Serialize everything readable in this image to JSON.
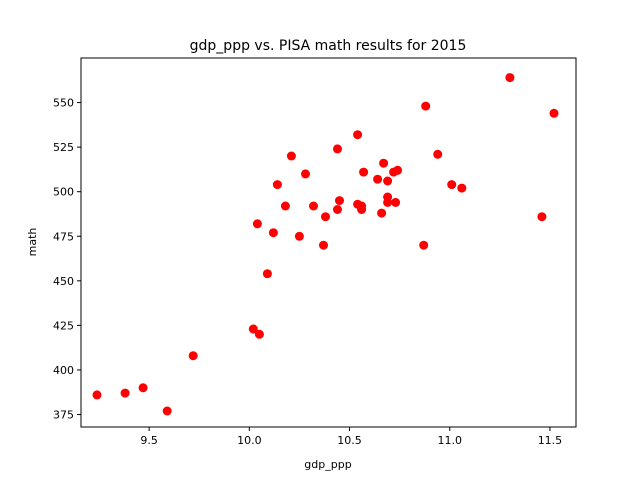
{
  "chart_data": {
    "type": "scatter",
    "title": "gdp_ppp vs. PISA math results for 2015",
    "xlabel": "gdp_ppp",
    "ylabel": "math",
    "xlim": [
      9.16,
      11.63
    ],
    "ylim": [
      368,
      575
    ],
    "x_ticks": [
      9.5,
      10.0,
      10.5,
      11.0,
      11.5
    ],
    "x_tick_labels": [
      "9.5",
      "10.0",
      "10.5",
      "11.0",
      "11.5"
    ],
    "y_ticks": [
      375,
      400,
      425,
      450,
      475,
      500,
      525,
      550
    ],
    "y_tick_labels": [
      "375",
      "400",
      "425",
      "450",
      "475",
      "500",
      "525",
      "550"
    ],
    "grid": false,
    "marker_color": "#ff0000",
    "points": [
      {
        "x": 9.24,
        "y": 386
      },
      {
        "x": 9.38,
        "y": 387
      },
      {
        "x": 9.47,
        "y": 390
      },
      {
        "x": 9.59,
        "y": 377
      },
      {
        "x": 9.72,
        "y": 408
      },
      {
        "x": 10.02,
        "y": 423
      },
      {
        "x": 10.05,
        "y": 420
      },
      {
        "x": 10.04,
        "y": 482
      },
      {
        "x": 10.09,
        "y": 454
      },
      {
        "x": 10.12,
        "y": 477
      },
      {
        "x": 10.14,
        "y": 504
      },
      {
        "x": 10.18,
        "y": 492
      },
      {
        "x": 10.21,
        "y": 520
      },
      {
        "x": 10.25,
        "y": 475
      },
      {
        "x": 10.28,
        "y": 510
      },
      {
        "x": 10.32,
        "y": 492
      },
      {
        "x": 10.37,
        "y": 470
      },
      {
        "x": 10.38,
        "y": 486
      },
      {
        "x": 10.44,
        "y": 524
      },
      {
        "x": 10.44,
        "y": 490
      },
      {
        "x": 10.45,
        "y": 495
      },
      {
        "x": 10.54,
        "y": 532
      },
      {
        "x": 10.54,
        "y": 493
      },
      {
        "x": 10.56,
        "y": 490
      },
      {
        "x": 10.56,
        "y": 492
      },
      {
        "x": 10.57,
        "y": 511
      },
      {
        "x": 10.64,
        "y": 507
      },
      {
        "x": 10.66,
        "y": 488
      },
      {
        "x": 10.67,
        "y": 516
      },
      {
        "x": 10.69,
        "y": 506
      },
      {
        "x": 10.69,
        "y": 494
      },
      {
        "x": 10.69,
        "y": 497
      },
      {
        "x": 10.72,
        "y": 511
      },
      {
        "x": 10.73,
        "y": 494
      },
      {
        "x": 10.74,
        "y": 512
      },
      {
        "x": 10.87,
        "y": 470
      },
      {
        "x": 10.88,
        "y": 548
      },
      {
        "x": 10.94,
        "y": 521
      },
      {
        "x": 11.01,
        "y": 504
      },
      {
        "x": 11.06,
        "y": 502
      },
      {
        "x": 11.3,
        "y": 564
      },
      {
        "x": 11.46,
        "y": 486
      },
      {
        "x": 11.52,
        "y": 544
      }
    ]
  }
}
